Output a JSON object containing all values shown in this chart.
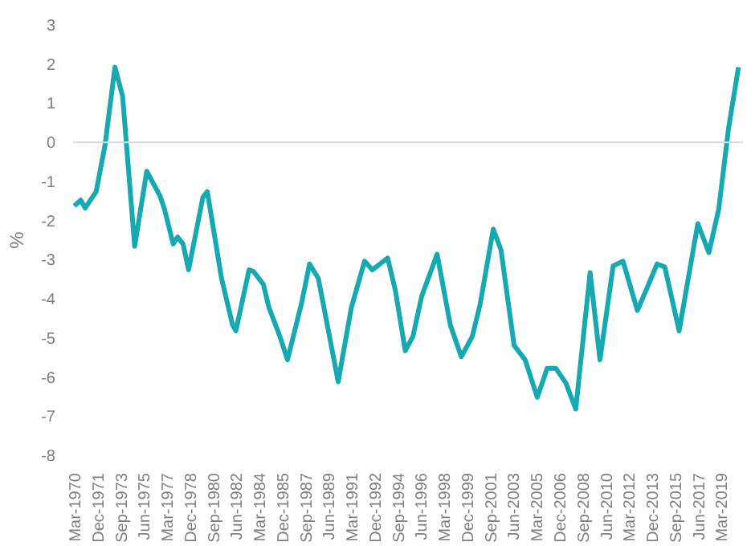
{
  "chart_data": {
    "type": "line",
    "ylabel": "%",
    "x": [
      "1970-01",
      "1970-07",
      "1970-11",
      "1971-09",
      "1972-05",
      "1973-02",
      "1973-09",
      "1974-08",
      "1975-07",
      "1976-07",
      "1976-11",
      "1977-07",
      "1977-11",
      "1978-04",
      "1978-09",
      "1979-10",
      "1980-02",
      "1981-03",
      "1982-01",
      "1982-04",
      "1983-04",
      "1983-08",
      "1984-05",
      "1984-10",
      "1985-08",
      "1986-03",
      "1987-04",
      "1987-11",
      "1988-07",
      "1990-01",
      "1991-01",
      "1992-01",
      "1992-08",
      "1993-10",
      "1994-05",
      "1995-02",
      "1995-09",
      "1996-05",
      "1997-07",
      "1998-07",
      "1999-05",
      "2000-03",
      "2000-10",
      "2001-10",
      "2002-05",
      "2003-05",
      "2004-03",
      "2005-02",
      "2005-11",
      "2006-07",
      "2007-04",
      "2008-01",
      "2009-02",
      "2009-11",
      "2010-11",
      "2011-08",
      "2012-09",
      "2013-05",
      "2014-03",
      "2014-10",
      "2015-11",
      "2017-04",
      "2018-02",
      "2018-11",
      "2019-08",
      "2020-05"
    ],
    "series": [
      {
        "color": "#17a9b1",
        "values": [
          -1.63,
          -1.48,
          -1.68,
          -1.26,
          -0.08,
          1.92,
          1.18,
          -2.66,
          -0.74,
          -1.37,
          -1.7,
          -2.6,
          -2.42,
          -2.6,
          -3.26,
          -1.41,
          -1.26,
          -3.48,
          -4.67,
          -4.82,
          -3.26,
          -3.3,
          -3.63,
          -4.22,
          -4.96,
          -5.56,
          -4.08,
          -3.11,
          -3.48,
          -6.12,
          -4.22,
          -3.04,
          -3.26,
          -2.96,
          -3.78,
          -5.33,
          -4.96,
          -3.93,
          -2.86,
          -4.67,
          -5.48,
          -4.96,
          -4.15,
          -2.22,
          -2.74,
          -5.19,
          -5.56,
          -6.52,
          -5.78,
          -5.78,
          -6.15,
          -6.82,
          -3.33,
          -5.56,
          -3.16,
          -3.04,
          -4.3,
          -3.78,
          -3.11,
          -3.19,
          -4.82,
          -2.08,
          -2.82,
          -1.71,
          0.37,
          1.92
        ]
      }
    ],
    "xlim": [
      "1969-12",
      "2020-09"
    ],
    "xticks": [
      {
        "value": "1970-03",
        "label": "Mar-1970"
      },
      {
        "value": "1971-12",
        "label": "Dec-1971"
      },
      {
        "value": "1973-09",
        "label": "Sep-1973"
      },
      {
        "value": "1975-06",
        "label": "Jun-1975"
      },
      {
        "value": "1977-03",
        "label": "Mar-1977"
      },
      {
        "value": "1978-12",
        "label": "Dec-1978"
      },
      {
        "value": "1980-09",
        "label": "Sep-1980"
      },
      {
        "value": "1982-06",
        "label": "Jun-1982"
      },
      {
        "value": "1984-03",
        "label": "Mar-1984"
      },
      {
        "value": "1985-12",
        "label": "Dec-1985"
      },
      {
        "value": "1987-09",
        "label": "Sep-1987"
      },
      {
        "value": "1989-06",
        "label": "Jun-1989"
      },
      {
        "value": "1991-03",
        "label": "Mar-1991"
      },
      {
        "value": "1992-12",
        "label": "Dec-1992"
      },
      {
        "value": "1994-09",
        "label": "Sep-1994"
      },
      {
        "value": "1996-06",
        "label": "Jun-1996"
      },
      {
        "value": "1998-03",
        "label": "Mar-1998"
      },
      {
        "value": "1999-12",
        "label": "Dec-1999"
      },
      {
        "value": "2001-09",
        "label": "Sep-2001"
      },
      {
        "value": "2003-06",
        "label": "Jun-2003"
      },
      {
        "value": "2005-03",
        "label": "Mar-2005"
      },
      {
        "value": "2006-12",
        "label": "Dec-2006"
      },
      {
        "value": "2008-09",
        "label": "Sep-2008"
      },
      {
        "value": "2010-06",
        "label": "Jun-2010"
      },
      {
        "value": "2012-03",
        "label": "Mar-2012"
      },
      {
        "value": "2013-12",
        "label": "Dec-2013"
      },
      {
        "value": "2015-09",
        "label": "Sep-2015"
      },
      {
        "value": "2017-06",
        "label": "Jun-2017"
      },
      {
        "value": "2019-03",
        "label": "Mar-2019"
      }
    ],
    "ylim": [
      -8,
      3
    ],
    "yticks": [
      -8,
      -7,
      -6,
      -5,
      -4,
      -3,
      -2,
      -1,
      0,
      1,
      2,
      3
    ],
    "grid": false,
    "ref_lines": [
      {
        "axis": "y",
        "value": 0,
        "color": "#d9d9d9"
      }
    ]
  }
}
